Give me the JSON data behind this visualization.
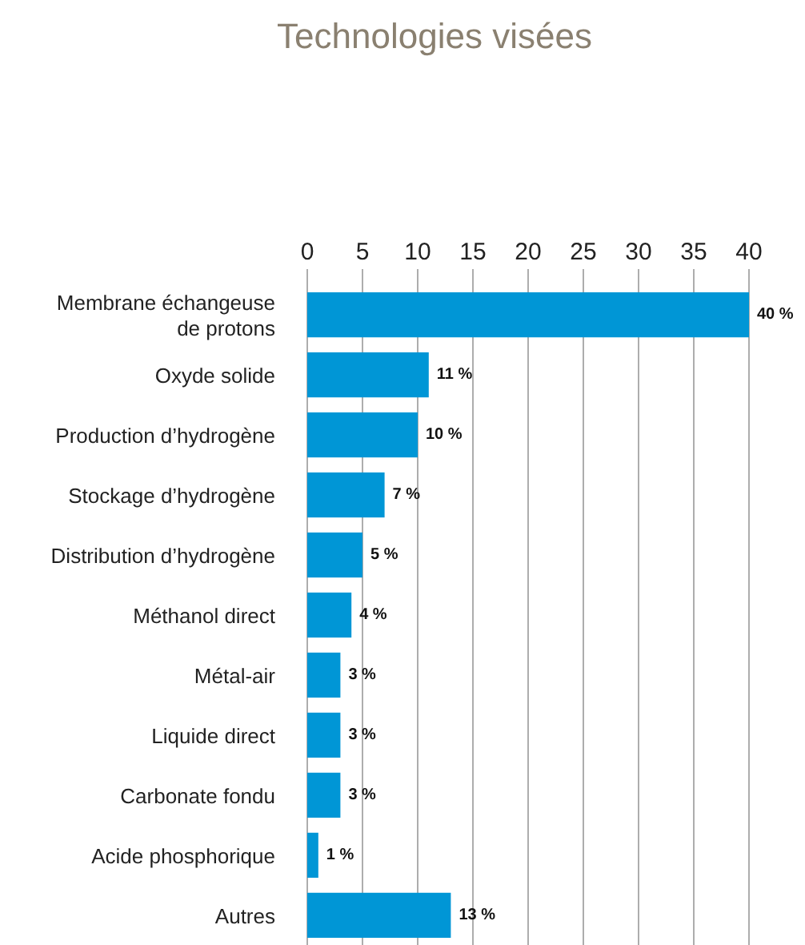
{
  "chart_data": {
    "type": "bar",
    "orientation": "horizontal",
    "title": "Technologies visées",
    "categories": [
      "Membrane échangeuse de protons",
      "Oxyde solide",
      "Production d’hydrogène",
      "Stockage d’hydrogène",
      "Distribution d’hydrogène",
      "Méthanol direct",
      "Métal-air",
      "Liquide direct",
      "Carbonate fondu",
      "Acide phosphorique",
      "Autres"
    ],
    "values": [
      40,
      11,
      10,
      7,
      5,
      4,
      3,
      3,
      3,
      1,
      13
    ],
    "value_labels": [
      "40 %",
      "11 %",
      "10 %",
      "7 %",
      "5 %",
      "4 %",
      "3 %",
      "3 %",
      "3 %",
      "1 %",
      "13 %"
    ],
    "color": "#0096d6",
    "xlim": [
      0,
      40
    ],
    "xticks": [
      0,
      5,
      10,
      15,
      20,
      25,
      30,
      35,
      40
    ],
    "grid": "x"
  }
}
